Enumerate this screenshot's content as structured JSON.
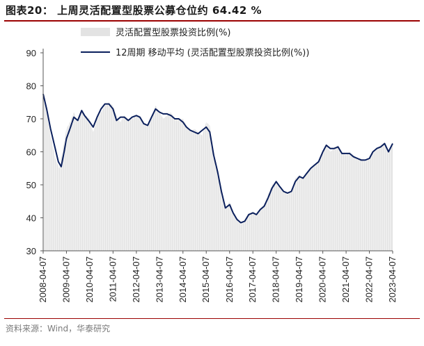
{
  "header": {
    "title": "图表20： 上周灵活配置型股票公募仓位约 64.42 %"
  },
  "footer": {
    "source": "资料来源：Wind，华泰研究"
  },
  "colors": {
    "area": "#e3e3e3",
    "line": "#0a1f5c",
    "rule": "#9b0000"
  },
  "chart_data": {
    "type": "area",
    "title": "上周灵活配置型股票公募仓位约 64.42 %",
    "xlabel": "",
    "ylabel": "",
    "ylim": [
      30,
      90
    ],
    "yticks": [
      30,
      40,
      50,
      60,
      70,
      80,
      90
    ],
    "xticks": [
      "2008-04-07",
      "2009-04-07",
      "2010-04-07",
      "2011-04-07",
      "2012-04-07",
      "2013-04-07",
      "2014-04-07",
      "2015-04-07",
      "2016-04-07",
      "2017-04-07",
      "2018-04-07",
      "2019-04-07",
      "2020-04-07",
      "2021-04-07",
      "2022-04-07",
      "2023-04-07"
    ],
    "legend": {
      "position": "top-center"
    },
    "grid": false,
    "series": [
      {
        "name": "灵活配置型股票投资比例(%)",
        "kind": "area",
        "points": [
          [
            "2008-04-07",
            77
          ],
          [
            "2008-06-01",
            72
          ],
          [
            "2008-08-01",
            65
          ],
          [
            "2008-10-15",
            58
          ],
          [
            "2008-12-15",
            55
          ],
          [
            "2009-02-01",
            60
          ],
          [
            "2009-04-07",
            67
          ],
          [
            "2009-06-01",
            69
          ],
          [
            "2009-08-01",
            72
          ],
          [
            "2009-10-01",
            69
          ],
          [
            "2009-12-01",
            73
          ],
          [
            "2010-02-01",
            71
          ],
          [
            "2010-04-07",
            70
          ],
          [
            "2010-06-01",
            66
          ],
          [
            "2010-08-01",
            70
          ],
          [
            "2010-10-01",
            72
          ],
          [
            "2010-12-01",
            74
          ],
          [
            "2011-02-01",
            75
          ],
          [
            "2011-04-07",
            74
          ],
          [
            "2011-06-01",
            71
          ],
          [
            "2011-08-01",
            69
          ],
          [
            "2011-10-01",
            71
          ],
          [
            "2011-12-01",
            70
          ],
          [
            "2012-02-01",
            70
          ],
          [
            "2012-04-07",
            71
          ],
          [
            "2012-06-01",
            71
          ],
          [
            "2012-08-01",
            69
          ],
          [
            "2012-10-01",
            68
          ],
          [
            "2012-12-01",
            70
          ],
          [
            "2013-02-01",
            74
          ],
          [
            "2013-04-07",
            72
          ],
          [
            "2013-06-01",
            70
          ],
          [
            "2013-08-01",
            71
          ],
          [
            "2013-10-01",
            72
          ],
          [
            "2013-12-01",
            70
          ],
          [
            "2014-02-01",
            70
          ],
          [
            "2014-04-07",
            70
          ],
          [
            "2014-06-01",
            68
          ],
          [
            "2014-08-01",
            66
          ],
          [
            "2014-10-01",
            67
          ],
          [
            "2014-12-01",
            66
          ],
          [
            "2015-02-01",
            65
          ],
          [
            "2015-04-07",
            69
          ],
          [
            "2015-06-01",
            68
          ],
          [
            "2015-08-01",
            60
          ],
          [
            "2015-10-01",
            54
          ],
          [
            "2015-12-01",
            49
          ],
          [
            "2016-02-01",
            43
          ],
          [
            "2016-04-07",
            45
          ],
          [
            "2016-06-01",
            42
          ],
          [
            "2016-08-01",
            40
          ],
          [
            "2016-10-01",
            38
          ],
          [
            "2016-12-01",
            39
          ],
          [
            "2017-02-01",
            41
          ],
          [
            "2017-04-07",
            42
          ],
          [
            "2017-06-01",
            41
          ],
          [
            "2017-08-01",
            43
          ],
          [
            "2017-10-01",
            44
          ],
          [
            "2017-12-01",
            47
          ],
          [
            "2018-02-01",
            50
          ],
          [
            "2018-04-07",
            51
          ],
          [
            "2018-06-01",
            49
          ],
          [
            "2018-08-01",
            48
          ],
          [
            "2018-10-01",
            47
          ],
          [
            "2018-12-01",
            48
          ],
          [
            "2019-02-01",
            52
          ],
          [
            "2019-04-07",
            53
          ],
          [
            "2019-06-01",
            52
          ],
          [
            "2019-08-01",
            54
          ],
          [
            "2019-10-01",
            55
          ],
          [
            "2019-12-01",
            56
          ],
          [
            "2020-02-01",
            57
          ],
          [
            "2020-04-07",
            60
          ],
          [
            "2020-06-01",
            62
          ],
          [
            "2020-08-01",
            60
          ],
          [
            "2020-10-01",
            61
          ],
          [
            "2020-12-01",
            62
          ],
          [
            "2021-02-01",
            60
          ],
          [
            "2021-04-07",
            59
          ],
          [
            "2021-06-01",
            60
          ],
          [
            "2021-08-01",
            59
          ],
          [
            "2021-10-01",
            58
          ],
          [
            "2021-12-01",
            58
          ],
          [
            "2022-02-01",
            57
          ],
          [
            "2022-04-07",
            58
          ],
          [
            "2022-06-01",
            60
          ],
          [
            "2022-08-01",
            61
          ],
          [
            "2022-10-01",
            62
          ],
          [
            "2022-12-01",
            63
          ],
          [
            "2023-02-01",
            60
          ],
          [
            "2023-04-07",
            63
          ]
        ]
      },
      {
        "name": "12周期 移动平均 (灵活配置型股票投资比例(%))",
        "kind": "line",
        "points": [
          [
            "2008-04-07",
            77.5
          ],
          [
            "2008-06-01",
            73
          ],
          [
            "2008-08-01",
            67
          ],
          [
            "2008-10-01",
            62
          ],
          [
            "2008-12-01",
            57
          ],
          [
            "2009-01-15",
            55.5
          ],
          [
            "2009-03-01",
            60
          ],
          [
            "2009-04-07",
            64
          ],
          [
            "2009-06-01",
            67
          ],
          [
            "2009-08-01",
            70.5
          ],
          [
            "2009-10-01",
            69.5
          ],
          [
            "2009-12-01",
            72.5
          ],
          [
            "2010-01-15",
            71
          ],
          [
            "2010-04-07",
            69
          ],
          [
            "2010-06-01",
            67.5
          ],
          [
            "2010-08-01",
            70.5
          ],
          [
            "2010-10-01",
            73
          ],
          [
            "2010-12-01",
            74.5
          ],
          [
            "2011-02-01",
            74.5
          ],
          [
            "2011-04-07",
            73
          ],
          [
            "2011-06-01",
            69.5
          ],
          [
            "2011-08-01",
            70.5
          ],
          [
            "2011-10-01",
            70.5
          ],
          [
            "2011-12-01",
            69.5
          ],
          [
            "2012-02-01",
            70.5
          ],
          [
            "2012-04-07",
            71
          ],
          [
            "2012-06-01",
            70.5
          ],
          [
            "2012-08-01",
            68.5
          ],
          [
            "2012-10-01",
            68
          ],
          [
            "2012-12-01",
            70.5
          ],
          [
            "2013-02-01",
            73
          ],
          [
            "2013-04-07",
            72
          ],
          [
            "2013-06-01",
            71.5
          ],
          [
            "2013-08-01",
            71.5
          ],
          [
            "2013-10-01",
            71
          ],
          [
            "2013-12-01",
            70
          ],
          [
            "2014-02-01",
            70
          ],
          [
            "2014-04-07",
            69
          ],
          [
            "2014-06-01",
            67.5
          ],
          [
            "2014-08-01",
            66.5
          ],
          [
            "2014-10-01",
            66
          ],
          [
            "2014-12-01",
            65.5
          ],
          [
            "2015-02-01",
            66.5
          ],
          [
            "2015-04-07",
            67.5
          ],
          [
            "2015-06-01",
            66
          ],
          [
            "2015-08-01",
            59
          ],
          [
            "2015-10-01",
            54
          ],
          [
            "2015-12-01",
            48
          ],
          [
            "2016-02-01",
            43
          ],
          [
            "2016-04-07",
            44
          ],
          [
            "2016-06-01",
            41.5
          ],
          [
            "2016-08-01",
            39.5
          ],
          [
            "2016-10-01",
            38.5
          ],
          [
            "2016-12-01",
            39
          ],
          [
            "2017-02-01",
            41
          ],
          [
            "2017-04-07",
            41.5
          ],
          [
            "2017-06-01",
            41
          ],
          [
            "2017-08-01",
            42.5
          ],
          [
            "2017-10-01",
            43.5
          ],
          [
            "2017-12-01",
            46
          ],
          [
            "2018-02-01",
            49
          ],
          [
            "2018-04-07",
            51
          ],
          [
            "2018-06-01",
            49.5
          ],
          [
            "2018-08-01",
            48
          ],
          [
            "2018-10-01",
            47.5
          ],
          [
            "2018-12-01",
            48
          ],
          [
            "2019-02-01",
            51
          ],
          [
            "2019-04-07",
            52.5
          ],
          [
            "2019-06-01",
            52
          ],
          [
            "2019-08-01",
            53.5
          ],
          [
            "2019-10-01",
            55
          ],
          [
            "2019-12-01",
            56
          ],
          [
            "2020-02-01",
            57
          ],
          [
            "2020-04-07",
            60
          ],
          [
            "2020-06-01",
            62
          ],
          [
            "2020-08-01",
            61
          ],
          [
            "2020-10-01",
            61
          ],
          [
            "2020-12-01",
            61.5
          ],
          [
            "2021-02-01",
            59.5
          ],
          [
            "2021-04-07",
            59.5
          ],
          [
            "2021-06-01",
            59.5
          ],
          [
            "2021-08-01",
            58.5
          ],
          [
            "2021-10-01",
            58
          ],
          [
            "2021-12-01",
            57.5
          ],
          [
            "2022-02-01",
            57.5
          ],
          [
            "2022-04-07",
            58
          ],
          [
            "2022-06-01",
            60
          ],
          [
            "2022-08-01",
            61
          ],
          [
            "2022-10-01",
            61.5
          ],
          [
            "2022-12-01",
            62.5
          ],
          [
            "2023-02-01",
            60
          ],
          [
            "2023-04-07",
            62.5
          ]
        ]
      }
    ]
  }
}
